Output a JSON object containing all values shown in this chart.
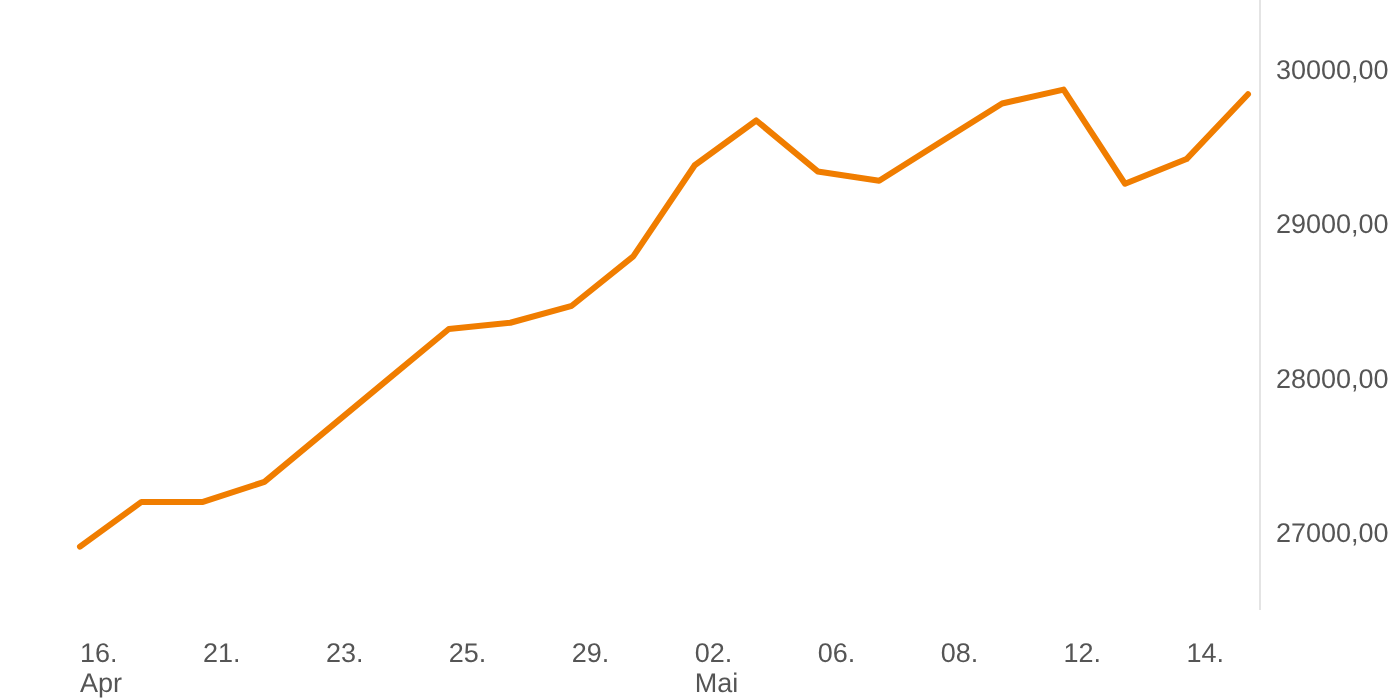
{
  "chart_data": {
    "type": "line",
    "categories": [
      "16.\nApr",
      null,
      "21.",
      null,
      "23.",
      null,
      "25.",
      null,
      "29.",
      null,
      "02.\nMai",
      null,
      "06.",
      null,
      "08.",
      null,
      "12.",
      null,
      "14.",
      null
    ],
    "series": [
      {
        "color": "#f07d00",
        "values": [
          26910,
          27200,
          27200,
          27330,
          27660,
          27990,
          28320,
          28360,
          28470,
          28790,
          29380,
          29670,
          29340,
          29280,
          29530,
          29780,
          29870,
          29260,
          29420,
          29840
        ]
      }
    ],
    "ylim": [
      26500,
      30450
    ],
    "yticks": [
      {
        "value": 27000,
        "label": "27000,00"
      },
      {
        "value": 28000,
        "label": "28000,00"
      },
      {
        "value": 29000,
        "label": "29000,00"
      },
      {
        "value": 30000,
        "label": "30000,00"
      }
    ],
    "grid": false,
    "marker": "none",
    "line_style": "solid"
  }
}
